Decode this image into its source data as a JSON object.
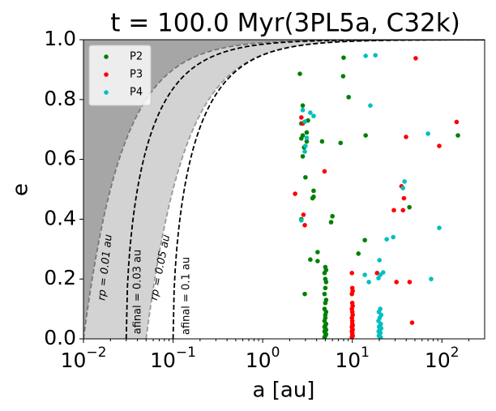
{
  "chart_data": {
    "type": "scatter",
    "title": "t = 100.0 Myr(3PL5a, C32k)",
    "x_label": "a [au]",
    "y_label": "e",
    "x_scale": "log",
    "grid": false,
    "legend_corner": "upper left",
    "xlim": [
      0.01,
      300
    ],
    "ylim": [
      0,
      1
    ],
    "xticks": [
      {
        "value": 0.01,
        "label": "10−2"
      },
      {
        "value": 0.1,
        "label": "10−1"
      },
      {
        "value": 1,
        "label": "100"
      },
      {
        "value": 10,
        "label": "101"
      },
      {
        "value": 100,
        "label": "102"
      }
    ],
    "yticks": [
      {
        "value": 0,
        "label": "0.0"
      },
      0.2,
      0.4,
      0.6,
      0.8,
      {
        "value": 1,
        "label": "1.0"
      }
    ],
    "curves": [
      {
        "kind": "pericenter",
        "param": 0.01,
        "label": "rp = 0.01 au",
        "color": "#777777"
      },
      {
        "kind": "final",
        "param": 0.03,
        "label": "afinal = 0.03 au",
        "color": "#000000"
      },
      {
        "kind": "pericenter",
        "param": 0.05,
        "label": "rp = 0.05 au",
        "color": "#999999"
      },
      {
        "kind": "final",
        "param": 0.1,
        "label": "afinal = 0.1 au",
        "color": "#000000"
      }
    ],
    "region_colors": [
      "#a6a6a6",
      "#d3d3d3"
    ],
    "series": [
      {
        "name": "P2",
        "color": "#008000",
        "x": [
          2.6,
          8.0,
          7.9,
          9.1,
          2.8,
          3.2,
          2.7,
          3.1,
          2.8,
          2.7,
          3.1,
          4.6,
          7.4,
          14.1,
          2.9,
          2.8,
          3.0,
          3.7,
          3.7,
          3.6,
          6.0,
          5.8,
          2.7,
          11.7,
          13.8,
          4.1,
          3.4,
          4.1,
          2.95,
          43.4,
          151,
          5.0,
          5.1,
          4.9,
          5.0,
          5.1,
          5.0,
          4.9,
          5.1,
          5.0,
          4.9,
          5.1,
          5.0,
          5.0,
          4.9,
          5.1,
          5.0,
          4.9,
          5.0,
          5.1,
          4.9,
          5.0,
          5.1,
          5.0,
          4.9
        ],
        "values": [
          0.886,
          0.94,
          0.878,
          0.808,
          0.78,
          0.73,
          0.72,
          0.69,
          0.68,
          0.67,
          0.66,
          0.66,
          0.655,
          0.68,
          0.64,
          0.61,
          0.54,
          0.495,
          0.475,
          0.47,
          0.41,
          0.39,
          0.4,
          0.285,
          0.33,
          0.29,
          0.265,
          0.26,
          0.15,
          0.44,
          0.68,
          0.24,
          0.23,
          0.22,
          0.2,
          0.19,
          0.17,
          0.15,
          0.13,
          0.12,
          0.1,
          0.09,
          0.08,
          0.07,
          0.06,
          0.05,
          0.045,
          0.04,
          0.035,
          0.03,
          0.025,
          0.02,
          0.015,
          0.01,
          0.005
        ]
      },
      {
        "name": "P3",
        "color": "#ff0000",
        "x": [
          51,
          2.7,
          2.8,
          4.9,
          2.3,
          2.85,
          2.95,
          39.8,
          93.4,
          146,
          35.4,
          37.7,
          29.1,
          36.8,
          9.9,
          18.9,
          31.1,
          43.6,
          46.5,
          10,
          10.1,
          9.9,
          10,
          10.1,
          9.9,
          10,
          10.1,
          9.9,
          10,
          10,
          10.1,
          9.9,
          10,
          10.1,
          9.9,
          10,
          10,
          10.1,
          9.9
        ],
        "values": [
          0.938,
          0.74,
          0.72,
          0.56,
          0.485,
          0.415,
          0.38,
          0.675,
          0.645,
          0.725,
          0.51,
          0.47,
          0.43,
          0.43,
          0.22,
          0.22,
          0.19,
          0.19,
          0.054,
          0.17,
          0.16,
          0.15,
          0.12,
          0.11,
          0.1,
          0.09,
          0.08,
          0.07,
          0.06,
          0.05,
          0.045,
          0.04,
          0.035,
          0.03,
          0.025,
          0.02,
          0.015,
          0.01,
          0.005
        ]
      },
      {
        "name": "P4",
        "color": "#00bfbf",
        "x": [
          14.1,
          18.1,
          15.9,
          2.8,
          3.4,
          3.7,
          2.95,
          3.1,
          3.0,
          2.95,
          70,
          38.3,
          36.8,
          2.7,
          93.4,
          28.6,
          24.2,
          20.1,
          22.1,
          20.5,
          19.6,
          13.8,
          15.3,
          75.8,
          20.5,
          19.8,
          21.0,
          20.2,
          19.6,
          20.8,
          20.4,
          19.9,
          21.0,
          20.3,
          19.7,
          20.6,
          20.1,
          19.8,
          20.7
        ],
        "values": [
          0.946,
          0.948,
          0.78,
          0.765,
          0.756,
          0.745,
          0.726,
          0.672,
          0.645,
          0.626,
          0.686,
          0.526,
          0.504,
          0.396,
          0.371,
          0.34,
          0.333,
          0.263,
          0.222,
          0.214,
          0.203,
          0.214,
          0.19,
          0.2,
          0.1,
          0.09,
          0.08,
          0.07,
          0.06,
          0.05,
          0.045,
          0.04,
          0.035,
          0.03,
          0.025,
          0.02,
          0.015,
          0.01,
          0.005
        ]
      }
    ]
  }
}
